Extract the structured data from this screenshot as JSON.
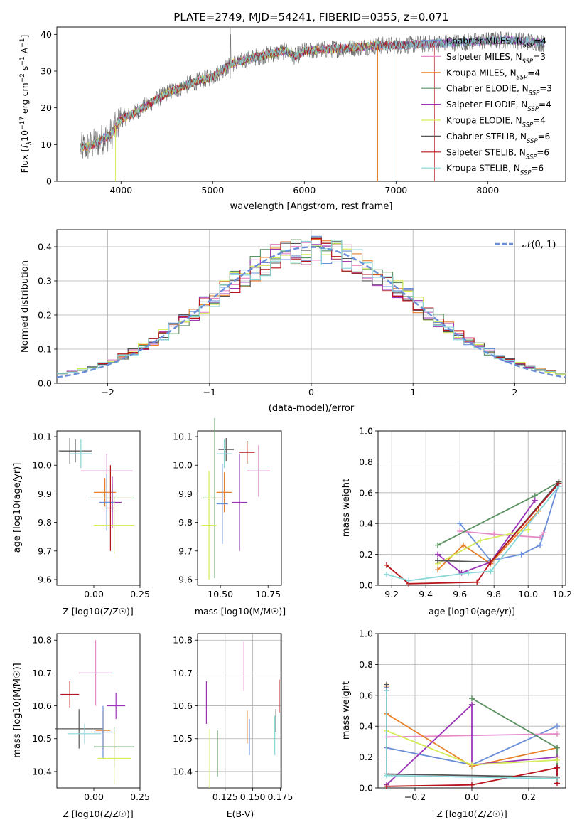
{
  "spec_title": "PLATE=2749, MJD=54241, FIBERID=0355, z=0.071",
  "legend_items": [
    {
      "label": "Chabrier MILES, N",
      "sub": "SSP",
      "post": "=4",
      "color": "#6a8fd8"
    },
    {
      "label": "Salpeter MILES, N",
      "sub": "SSP",
      "post": "=3",
      "color": "#e68bc8"
    },
    {
      "label": "Kroupa MILES, N",
      "sub": "SSP",
      "post": "=4",
      "color": "#e8802a"
    },
    {
      "label": "Chabrier ELODIE, N",
      "sub": "SSP",
      "post": "=3",
      "color": "#5a9160"
    },
    {
      "label": "Salpeter ELODIE, N",
      "sub": "SSP",
      "post": "=4",
      "color": "#9a35b8"
    },
    {
      "label": "Kroupa ELODIE, N",
      "sub": "SSP",
      "post": "=4",
      "color": "#d6ec5a"
    },
    {
      "label": "Chabrier STELIB, N",
      "sub": "SSP",
      "post": "=6",
      "color": "#555555"
    },
    {
      "label": "Salpeter STELIB, N",
      "sub": "SSP",
      "post": "=6",
      "color": "#b8141c"
    },
    {
      "label": "Kroupa STELIB, N",
      "sub": "SSP",
      "post": "=6",
      "color": "#88d6d8"
    }
  ],
  "hist_legend": "𝒩(0, 1)",
  "chart_data": [
    {
      "type": "line",
      "title": "PLATE=2749, MJD=54241, FIBERID=0355, z=0.071",
      "xlabel": "wavelength [Angstrom, rest frame]",
      "ylabel": "Flux [f_λ 10^-17 erg cm^-2 s^-1 A^-1]",
      "xlim": [
        3300,
        8850
      ],
      "ylim": [
        0,
        42
      ],
      "xticks": [
        4000,
        5000,
        6000,
        7000,
        8000
      ],
      "yticks": [
        0,
        10,
        20,
        30,
        40
      ],
      "continuum": {
        "x": [
          3560,
          3700,
          3900,
          3950,
          4000,
          4100,
          4300,
          4500,
          4800,
          5000,
          5200,
          5500,
          5800,
          5900,
          6000,
          6300,
          6600,
          6800,
          7000,
          7400,
          7800,
          8200,
          8500,
          8620
        ],
        "y": [
          9,
          10,
          13,
          15,
          17,
          18,
          21,
          24,
          27,
          28.5,
          32,
          34,
          35.5,
          34,
          35.5,
          36,
          36.5,
          37,
          37,
          37.5,
          38,
          38.5,
          38,
          37.5
        ]
      }
    },
    {
      "type": "histogram",
      "xlabel": "(data-model)/error",
      "ylabel": "Normed distribution",
      "xlim": [
        -2.5,
        2.5
      ],
      "ylim": [
        0,
        0.45
      ],
      "xticks": [
        -2,
        -1,
        0,
        1,
        2
      ],
      "yticks": [
        0,
        0.1,
        0.2,
        0.3,
        0.4
      ],
      "reference_curve": "N(0,1)"
    },
    {
      "type": "scatter",
      "xlabel": "Z [log10(Z/Z☉)]",
      "ylabel": "age [log10(age/yr)]",
      "xlim": [
        -0.2,
        0.25
      ],
      "ylim": [
        9.58,
        10.12
      ],
      "xticks": [
        0.0,
        0.25
      ],
      "xtick_labels": [
        "0.00",
        "0.25"
      ],
      "yticks": [
        9.6,
        9.7,
        9.8,
        9.9,
        10.0,
        10.1
      ],
      "points": [
        {
          "x": -0.13,
          "y": 10.05,
          "ex": 0.05,
          "ey": 0.045,
          "c": 6
        },
        {
          "x": -0.1,
          "y": 10.05,
          "ex": 0.09,
          "ey": 0.04,
          "c": 6
        },
        {
          "x": -0.07,
          "y": 10.04,
          "ex": 0.06,
          "ey": 0.05,
          "c": 8
        },
        {
          "x": 0.07,
          "y": 9.98,
          "ex": 0.14,
          "ey": 0.06,
          "c": 1
        },
        {
          "x": 0.06,
          "y": 9.905,
          "ex": 0.06,
          "ey": 0.05,
          "c": 2
        },
        {
          "x": 0.1,
          "y": 9.885,
          "ex": 0.12,
          "ey": 0.05,
          "c": 3
        },
        {
          "x": 0.1,
          "y": 9.87,
          "ex": 0.05,
          "ey": 0.09,
          "c": 4
        },
        {
          "x": 0.07,
          "y": 9.87,
          "ex": 0.04,
          "ey": 0.1,
          "c": 0
        },
        {
          "x": 0.11,
          "y": 9.79,
          "ex": 0.11,
          "ey": 0.1,
          "c": 5
        },
        {
          "x": 0.09,
          "y": 9.85,
          "ex": 0.02,
          "ey": 0.15,
          "c": 7
        }
      ]
    },
    {
      "type": "scatter",
      "xlabel": "mass [log10(M/M☉)]",
      "ylabel": "",
      "xlim": [
        10.38,
        10.82
      ],
      "ylim": [
        9.58,
        10.12
      ],
      "xticks": [
        10.5,
        10.75
      ],
      "xtick_labels": [
        "10.50",
        "10.75"
      ],
      "yticks": [
        9.6,
        9.7,
        9.8,
        9.9,
        10.0,
        10.1
      ],
      "points": [
        {
          "x": 10.53,
          "y": 10.055,
          "ex": 0.04,
          "ey": 0.04,
          "c": 6
        },
        {
          "x": 10.52,
          "y": 10.04,
          "ex": 0.04,
          "ey": 0.05,
          "c": 8
        },
        {
          "x": 10.64,
          "y": 10.045,
          "ex": 0.04,
          "ey": 0.04,
          "c": 7
        },
        {
          "x": 10.7,
          "y": 9.98,
          "ex": 0.06,
          "ey": 0.09,
          "c": 1
        },
        {
          "x": 10.52,
          "y": 9.905,
          "ex": 0.04,
          "ey": 0.07,
          "c": 2
        },
        {
          "x": 10.47,
          "y": 9.885,
          "ex": 0.06,
          "ey": 0.28,
          "c": 3
        },
        {
          "x": 10.6,
          "y": 9.87,
          "ex": 0.04,
          "ey": 0.17,
          "c": 4
        },
        {
          "x": 10.51,
          "y": 9.865,
          "ex": 0.03,
          "ey": 0.14,
          "c": 0
        },
        {
          "x": 10.44,
          "y": 9.79,
          "ex": 0.04,
          "ey": 0.19,
          "c": 5
        }
      ]
    },
    {
      "type": "line",
      "xlabel": "age [log10(age/yr)]",
      "ylabel": "mass weight",
      "xlim": [
        9.12,
        10.22
      ],
      "ylim": [
        0,
        1.0
      ],
      "xticks": [
        9.2,
        9.4,
        9.6,
        9.8,
        10.0,
        10.2
      ],
      "yticks": [
        0.0,
        0.2,
        0.4,
        0.6,
        0.8,
        1.0
      ],
      "series": [
        {
          "c": 0,
          "x": [
            9.6,
            9.78,
            9.96,
            10.07,
            10.18
          ],
          "y": [
            0.4,
            0.16,
            0.2,
            0.26,
            0.66
          ]
        },
        {
          "c": 1,
          "x": [
            9.6,
            9.8,
            10.07,
            10.09
          ],
          "y": [
            0.35,
            0.33,
            0.31,
            0.34
          ]
        },
        {
          "c": 2,
          "x": [
            9.47,
            9.62,
            9.78,
            10.06
          ],
          "y": [
            0.1,
            0.26,
            0.14,
            0.48
          ]
        },
        {
          "c": 3,
          "x": [
            9.47,
            10.04,
            10.18
          ],
          "y": [
            0.26,
            0.58,
            0.67
          ]
        },
        {
          "c": 4,
          "x": [
            9.47,
            9.61,
            9.78,
            10.04
          ],
          "y": [
            0.2,
            0.08,
            0.15,
            0.55
          ]
        },
        {
          "c": 5,
          "x": [
            9.47,
            9.72,
            10.0
          ],
          "y": [
            0.14,
            0.29,
            0.36
          ]
        },
        {
          "c": 6,
          "x": [
            9.47,
            9.78,
            10.18
          ],
          "y": [
            0.16,
            0.15,
            0.67
          ]
        },
        {
          "c": 7,
          "x": [
            9.17,
            9.3,
            9.7,
            9.78,
            10.18
          ],
          "y": [
            0.13,
            0.01,
            0.02,
            0.15,
            0.66
          ]
        },
        {
          "c": 8,
          "x": [
            9.17,
            9.3,
            9.65,
            9.78,
            10.18
          ],
          "y": [
            0.07,
            0.03,
            0.08,
            0.09,
            0.64
          ]
        }
      ]
    },
    {
      "type": "scatter",
      "xlabel": "Z [log10(Z/Z☉)]",
      "ylabel": "mass [log10(M/M☉)]",
      "xlim": [
        -0.2,
        0.25
      ],
      "ylim": [
        10.35,
        10.82
      ],
      "xticks": [
        0.0,
        0.25
      ],
      "xtick_labels": [
        "0.00",
        "0.25"
      ],
      "yticks": [
        10.4,
        10.5,
        10.6,
        10.7,
        10.8
      ],
      "points": [
        {
          "x": -0.13,
          "y": 10.635,
          "ex": 0.05,
          "ey": 0.04,
          "c": 7
        },
        {
          "x": 0.01,
          "y": 10.7,
          "ex": 0.09,
          "ey": 0.1,
          "c": 1
        },
        {
          "x": 0.12,
          "y": 10.6,
          "ex": 0.05,
          "ey": 0.04,
          "c": 4
        },
        {
          "x": -0.08,
          "y": 10.53,
          "ex": 0.13,
          "ey": 0.06,
          "c": 6
        },
        {
          "x": -0.05,
          "y": 10.515,
          "ex": 0.09,
          "ey": 0.03,
          "c": 8
        },
        {
          "x": 0.05,
          "y": 10.525,
          "ex": 0.04,
          "ey": 0.06,
          "c": 2
        },
        {
          "x": 0.05,
          "y": 10.52,
          "ex": 0.05,
          "ey": 0.08,
          "c": 0
        },
        {
          "x": 0.11,
          "y": 10.475,
          "ex": 0.11,
          "ey": 0.06,
          "c": 3
        },
        {
          "x": 0.11,
          "y": 10.44,
          "ex": 0.09,
          "ey": 0.08,
          "c": 5
        }
      ]
    },
    {
      "type": "scatter",
      "xlabel": "E(B-V)",
      "ylabel": "",
      "xlim": [
        0.1,
        0.176
      ],
      "ylim": [
        10.35,
        10.82
      ],
      "xticks": [
        0.125,
        0.15,
        0.175
      ],
      "xtick_labels": [
        "0.125",
        "0.150",
        "0.175"
      ],
      "yticks": [
        10.4,
        10.5,
        10.6,
        10.7,
        10.8
      ],
      "points": [
        {
          "x": 0.108,
          "y": 10.61,
          "ex": 0,
          "ey": 0.065,
          "c": 4
        },
        {
          "x": 0.111,
          "y": 10.44,
          "ex": 0,
          "ey": 0.09,
          "c": 5
        },
        {
          "x": 0.118,
          "y": 10.455,
          "ex": 0,
          "ey": 0.07,
          "c": 3
        },
        {
          "x": 0.142,
          "y": 10.72,
          "ex": 0,
          "ey": 0.075,
          "c": 1
        },
        {
          "x": 0.145,
          "y": 10.535,
          "ex": 0,
          "ey": 0.05,
          "c": 2
        },
        {
          "x": 0.147,
          "y": 10.505,
          "ex": 0,
          "ey": 0.055,
          "c": 0
        },
        {
          "x": 0.17,
          "y": 10.51,
          "ex": 0,
          "ey": 0.06,
          "c": 8
        },
        {
          "x": 0.171,
          "y": 10.555,
          "ex": 0,
          "ey": 0.035,
          "c": 6
        },
        {
          "x": 0.174,
          "y": 10.63,
          "ex": 0,
          "ey": 0.05,
          "c": 7
        }
      ]
    },
    {
      "type": "line",
      "xlabel": "Z [log10(Z/Z☉)]",
      "ylabel": "mass weight",
      "xlim": [
        -0.33,
        0.33
      ],
      "ylim": [
        0,
        1.0
      ],
      "xticks": [
        -0.2,
        0.0,
        0.2
      ],
      "xtick_labels": [
        "−0.2",
        "0.0",
        "0.2"
      ],
      "yticks": [
        0.0,
        0.2,
        0.4,
        0.6,
        0.8,
        1.0
      ],
      "series": [
        {
          "c": 0,
          "x": [
            -0.3,
            -0.3,
            0.0,
            0.3
          ],
          "y": [
            0.65,
            0.26,
            0.15,
            0.4
          ]
        },
        {
          "c": 1,
          "x": [
            -0.3,
            0.3
          ],
          "y": [
            0.33,
            0.35
          ]
        },
        {
          "c": 2,
          "x": [
            -0.3,
            -0.3,
            0.0,
            0.3
          ],
          "y": [
            0.66,
            0.48,
            0.14,
            0.26
          ]
        },
        {
          "c": 3,
          "x": [
            0.0,
            0.3,
            0.3
          ],
          "y": [
            0.58,
            0.26,
            0.07
          ]
        },
        {
          "c": 4,
          "x": [
            -0.3,
            0.0,
            0.0,
            0.3
          ],
          "y": [
            0.02,
            0.54,
            0.15,
            0.2
          ]
        },
        {
          "c": 5,
          "x": [
            -0.3,
            0.0,
            0.3
          ],
          "y": [
            0.37,
            0.15,
            0.18
          ]
        },
        {
          "c": 6,
          "x": [
            -0.3,
            -0.3,
            0.3,
            0.3
          ],
          "y": [
            0.67,
            0.09,
            0.07,
            0.13
          ]
        },
        {
          "c": 7,
          "x": [
            -0.3,
            0.0,
            0.3,
            0.3
          ],
          "y": [
            0.01,
            0.02,
            0.13,
            0.03
          ]
        },
        {
          "c": 8,
          "x": [
            -0.3,
            -0.3,
            0.3
          ],
          "y": [
            0.63,
            0.08,
            0.06
          ]
        }
      ]
    }
  ]
}
